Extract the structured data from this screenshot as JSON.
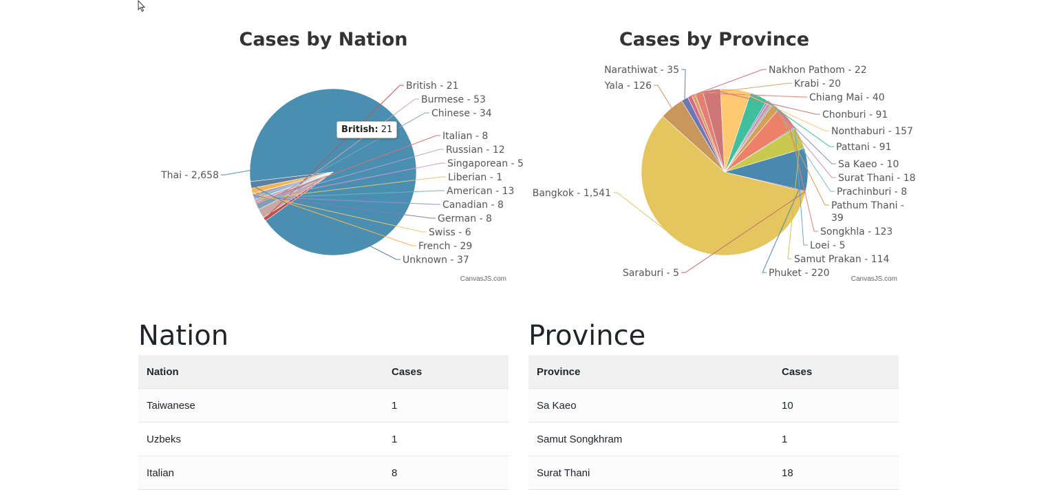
{
  "chart_data": [
    {
      "type": "pie",
      "title": "Cases by Nation",
      "credit": "CanvasJS.com",
      "slices": [
        {
          "label": "Thai",
          "value": 2658,
          "text": "Thai - 2,658",
          "color": "#4a8fb1"
        },
        {
          "label": "British",
          "value": 21,
          "text": "British - 21",
          "color": "#c0504e"
        },
        {
          "label": "Burmese",
          "value": 53,
          "text": "Burmese - 53",
          "color": "#c6a9a4"
        },
        {
          "label": "Chinese",
          "value": 34,
          "text": "Chinese - 34",
          "color": "#7f9fb8"
        },
        {
          "label": "Italian",
          "value": 8,
          "text": "Italian - 8",
          "color": "#e2726f"
        },
        {
          "label": "Russian",
          "value": 12,
          "text": "Russian - 12",
          "color": "#b3a3c9"
        },
        {
          "label": "Singaporean",
          "value": 5,
          "text": "Singaporean - 5",
          "color": "#d79bc0"
        },
        {
          "label": "Liberian",
          "value": 1,
          "text": "Liberian - 1",
          "color": "#dccb6f"
        },
        {
          "label": "American",
          "value": 13,
          "text": "American - 13",
          "color": "#6fb6c2"
        },
        {
          "label": "Canadian",
          "value": 8,
          "text": "Canadian - 8",
          "color": "#9b8fc7"
        },
        {
          "label": "German",
          "value": 8,
          "text": "German - 8",
          "color": "#7b7fb9"
        },
        {
          "label": "Swiss",
          "value": 6,
          "text": "Swiss - 6",
          "color": "#f2c46c"
        },
        {
          "label": "French",
          "value": 29,
          "text": "French - 29",
          "color": "#f7b34e"
        },
        {
          "label": "Unknown",
          "value": 37,
          "text": "Unknown - 37",
          "color": "#5d7fa0"
        }
      ],
      "tooltip": {
        "label": "British:",
        "value": "21"
      }
    },
    {
      "type": "pie",
      "title": "Cases by Province",
      "credit": "CanvasJS.com",
      "slices": [
        {
          "label": "Narathiwat",
          "value": 35,
          "text": "Narathiwat - 35",
          "color": "#6b78b3"
        },
        {
          "label": "Nakhon Pathom",
          "value": 22,
          "text": "Nakhon Pathom - 22",
          "color": "#d66a83"
        },
        {
          "label": "Krabi",
          "value": 20,
          "text": "Krabi - 20",
          "color": "#d9a46b"
        },
        {
          "label": "Chiang Mai",
          "value": 40,
          "text": "Chiang Mai - 40",
          "color": "#e57f72"
        },
        {
          "label": "Chonburi",
          "value": 91,
          "text": "Chonburi - 91",
          "color": "#cf7777"
        },
        {
          "label": "Nonthaburi",
          "value": 157,
          "text": "Nonthaburi - 157",
          "color": "#ffc971"
        },
        {
          "label": "Pattani",
          "value": 91,
          "text": "Pattani - 91",
          "color": "#3fbf9b"
        },
        {
          "label": "Sa Kaeo",
          "value": 10,
          "text": "Sa Kaeo - 10",
          "color": "#8a8cc4"
        },
        {
          "label": "Surat Thani",
          "value": 18,
          "text": "Surat Thani - 18",
          "color": "#d88fa8"
        },
        {
          "label": "Prachinburi",
          "value": 8,
          "text": "Prachinburi - 8",
          "color": "#7fb7c9"
        },
        {
          "label": "Pathum Thani",
          "value": 39,
          "text": "Pathum Thani - 39",
          "text_lines": [
            "Pathum Thani -",
            "39"
          ],
          "color": "#d4a055"
        },
        {
          "label": "Songkhla",
          "value": 123,
          "text": "Songkhla - 123",
          "color": "#ec8068"
        },
        {
          "label": "Loei",
          "value": 5,
          "text": "Loei - 5",
          "color": "#6aa5c4"
        },
        {
          "label": "Samut Prakan",
          "value": 114,
          "text": "Samut Prakan - 114",
          "color": "#c9c94f"
        },
        {
          "label": "Phuket",
          "value": 220,
          "text": "Phuket - 220",
          "color": "#4a88b0"
        },
        {
          "label": "Saraburi",
          "value": 5,
          "text": "Saraburi - 5",
          "color": "#c36a6a"
        },
        {
          "label": "Bangkok",
          "value": 1541,
          "text": "Bangkok - 1,541",
          "color": "#e5c65e"
        },
        {
          "label": "Yala",
          "value": 126,
          "text": "Yala - 126",
          "color": "#c9975c"
        }
      ]
    }
  ],
  "nation_table": {
    "heading": "Nation",
    "columns": [
      "Nation",
      "Cases"
    ],
    "rows": [
      [
        "Taiwanese",
        "1"
      ],
      [
        "Uzbeks",
        "1"
      ],
      [
        "Italian",
        "8"
      ]
    ]
  },
  "province_table": {
    "heading": "Province",
    "columns": [
      "Province",
      "Cases"
    ],
    "rows": [
      [
        "Sa Kaeo",
        "10"
      ],
      [
        "Samut Songkhram",
        "1"
      ],
      [
        "Surat Thani",
        "18"
      ]
    ]
  }
}
